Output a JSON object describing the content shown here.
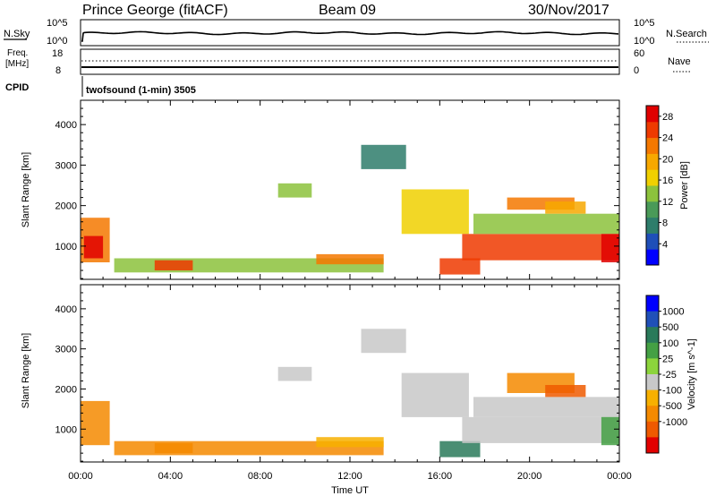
{
  "header": {
    "station": "Prince George (fitACF)",
    "beam": "Beam 09",
    "date": "30/Nov/2017"
  },
  "labels": {
    "nsky": "N.Sky",
    "nsearch": "N.Search",
    "freq_line1": "Freq.",
    "freq_line2": "[MHz]",
    "nave": "Nave",
    "cpid": "CPID",
    "cpid_value": "twofsound (1-min) 3505",
    "slant_range": "Slant Range [km]",
    "time_ut": "Time UT"
  },
  "noise_axis": {
    "left_top": "10^5",
    "left_bottom": "10^0",
    "right_top": "10^5",
    "right_bottom": "10^0"
  },
  "freq_axis": {
    "left_top": "18",
    "left_bottom": "8",
    "right_top": "60",
    "right_bottom": "0"
  },
  "colors": {
    "power_scale": [
      "#0000ff",
      "#1f4fb8",
      "#2e7d6b",
      "#4a9a58",
      "#8cc23c",
      "#f0d000",
      "#f7a800",
      "#f47800",
      "#ee3a00",
      "#e00000"
    ],
    "velocity_scale": [
      "#0000ff",
      "#2050b8",
      "#2a7a5a",
      "#44a044",
      "#8cd43c",
      "#c8c8c8",
      "#f7b000",
      "#f48a00",
      "#ef5a00",
      "#e20000"
    ],
    "ground_scatter": "#c8c8c8"
  },
  "chart_data": [
    {
      "type": "heatmap",
      "panel": "power",
      "ylabel": "Slant Range [km]",
      "xlabel": "Time UT",
      "x_tick_labels": [
        "00:00",
        "04:00",
        "08:00",
        "12:00",
        "16:00",
        "20:00",
        "00:00"
      ],
      "xlim_hours": [
        0,
        24
      ],
      "y_ticks": [
        1000,
        2000,
        3000,
        4000
      ],
      "ylim_km": [
        180,
        4600
      ],
      "colorbar": {
        "label": "Power [dB]",
        "ticks": [
          "4",
          "8",
          "12",
          "16",
          "20",
          "24",
          "28"
        ],
        "range": [
          0,
          30
        ]
      },
      "regions": [
        {
          "t0": 0.0,
          "t1": 1.3,
          "r0": 600,
          "r1": 1700,
          "value": 22
        },
        {
          "t0": 0.15,
          "t1": 1.0,
          "r0": 700,
          "r1": 1250,
          "value": 29
        },
        {
          "t0": 1.5,
          "t1": 13.5,
          "r0": 350,
          "r1": 700,
          "value": 14
        },
        {
          "t0": 3.3,
          "t1": 5.0,
          "r0": 400,
          "r1": 650,
          "value": 24
        },
        {
          "t0": 10.5,
          "t1": 13.5,
          "r0": 550,
          "r1": 800,
          "value": 22
        },
        {
          "t0": 8.8,
          "t1": 10.3,
          "r0": 2200,
          "r1": 2550,
          "value": 12
        },
        {
          "t0": 12.5,
          "t1": 14.5,
          "r0": 2900,
          "r1": 3500,
          "value": 8
        },
        {
          "t0": 14.3,
          "t1": 17.3,
          "r0": 1300,
          "r1": 2400,
          "value": 16
        },
        {
          "t0": 16.0,
          "t1": 17.8,
          "r0": 300,
          "r1": 700,
          "value": 24
        },
        {
          "t0": 17.0,
          "t1": 24.0,
          "r0": 650,
          "r1": 1300,
          "value": 26
        },
        {
          "t0": 17.5,
          "t1": 24.0,
          "r0": 1300,
          "r1": 1800,
          "value": 12
        },
        {
          "t0": 19.0,
          "t1": 22.0,
          "r0": 1900,
          "r1": 2200,
          "value": 22
        },
        {
          "t0": 20.7,
          "t1": 22.5,
          "r0": 1800,
          "r1": 2100,
          "value": 18
        },
        {
          "t0": 23.2,
          "t1": 24.0,
          "r0": 600,
          "r1": 1300,
          "value": 27
        }
      ]
    },
    {
      "type": "heatmap",
      "panel": "velocity",
      "ylabel": "Slant Range [km]",
      "xlabel": "Time UT",
      "x_tick_labels": [
        "00:00",
        "04:00",
        "08:00",
        "12:00",
        "16:00",
        "20:00",
        "00:00"
      ],
      "xlim_hours": [
        0,
        24
      ],
      "y_ticks": [
        1000,
        2000,
        3000,
        4000
      ],
      "ylim_km": [
        180,
        4600
      ],
      "colorbar": {
        "label": "Velocity [m s^-1]",
        "ticks": [
          "1000",
          "500",
          "100",
          "25",
          "-25",
          "-100",
          "-500",
          "-1000"
        ],
        "range": [
          -1000,
          1000
        ]
      },
      "regions": [
        {
          "t0": 0.0,
          "t1": 1.3,
          "r0": 600,
          "r1": 1700,
          "value": -80
        },
        {
          "t0": 1.5,
          "t1": 13.5,
          "r0": 350,
          "r1": 700,
          "value": -120
        },
        {
          "t0": 3.3,
          "t1": 5.0,
          "r0": 400,
          "r1": 650,
          "value": -150
        },
        {
          "t0": 10.5,
          "t1": 13.5,
          "r0": 550,
          "r1": 800,
          "value": -60
        },
        {
          "t0": 8.8,
          "t1": 10.3,
          "r0": 2200,
          "r1": 2550,
          "value": 0
        },
        {
          "t0": 12.5,
          "t1": 14.5,
          "r0": 2900,
          "r1": 3500,
          "value": 0
        },
        {
          "t0": 14.3,
          "t1": 17.3,
          "r0": 1300,
          "r1": 2400,
          "value": 0
        },
        {
          "t0": 16.0,
          "t1": 17.8,
          "r0": 300,
          "r1": 700,
          "value": 60
        },
        {
          "t0": 17.0,
          "t1": 24.0,
          "r0": 650,
          "r1": 1300,
          "value": 0
        },
        {
          "t0": 17.5,
          "t1": 24.0,
          "r0": 1300,
          "r1": 1800,
          "value": 0
        },
        {
          "t0": 19.0,
          "t1": 22.0,
          "r0": 1900,
          "r1": 2400,
          "value": -300
        },
        {
          "t0": 20.7,
          "t1": 22.5,
          "r0": 1800,
          "r1": 2100,
          "value": -350
        },
        {
          "t0": 23.2,
          "t1": 24.0,
          "r0": 600,
          "r1": 1300,
          "value": 50
        }
      ]
    }
  ]
}
